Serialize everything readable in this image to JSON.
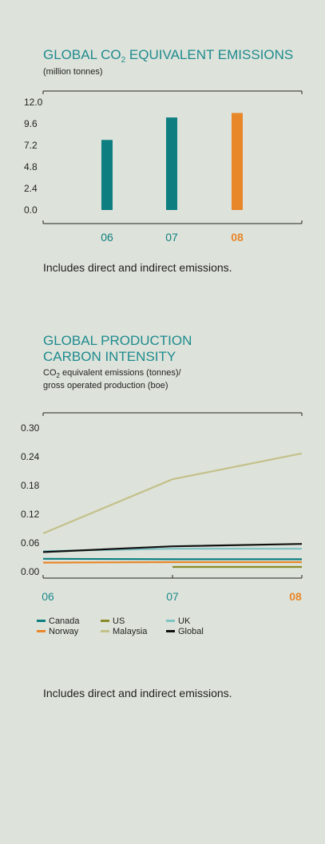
{
  "chart_data": [
    {
      "type": "bar",
      "title_prefix": "GLOBAL CO",
      "title_sub": "2",
      "title_suffix": " EQUIVALENT EMISSIONS",
      "subtitle": "(million tonnes)",
      "categories": [
        "06",
        "07",
        "08"
      ],
      "values": [
        7.8,
        10.3,
        10.8
      ],
      "colors": [
        "#0e7e80",
        "#0e7e80",
        "#e8862a"
      ],
      "ylim": [
        0,
        12.0
      ],
      "yticks": [
        "12.0",
        "9.6",
        "7.2",
        "4.8",
        "2.4",
        "0.0"
      ],
      "note": "Includes direct and indirect emissions."
    },
    {
      "type": "line",
      "title_line1": "GLOBAL PRODUCTION",
      "title_line2": "CARBON INTENSITY",
      "subtitle_prefix": "CO",
      "subtitle_sub": "2",
      "subtitle_suffix": " equivalent emissions (tonnes)/",
      "subtitle_line2": "gross operated production (boe)",
      "x": [
        "06",
        "07",
        "08"
      ],
      "ylim": [
        0,
        0.3
      ],
      "yticks": [
        "0.30",
        "0.24",
        "0.18",
        "0.12",
        "0.06",
        "0.00"
      ],
      "series": [
        {
          "name": "Canada",
          "color": "#0e7e80",
          "values": [
            0.027,
            0.026,
            0.026
          ]
        },
        {
          "name": "Norway",
          "color": "#e8862a",
          "values": [
            0.019,
            0.02,
            0.02
          ]
        },
        {
          "name": "US",
          "color": "#8a8a26",
          "values": [
            null,
            0.01,
            0.01
          ]
        },
        {
          "name": "Malaysia",
          "color": "#c4c08a",
          "values": [
            0.08,
            0.193,
            0.247
          ]
        },
        {
          "name": "UK",
          "color": "#7fc2c6",
          "values": [
            0.043,
            0.048,
            0.048
          ]
        },
        {
          "name": "Global",
          "color": "#111111",
          "values": [
            0.041,
            0.053,
            0.058
          ]
        }
      ],
      "note": "Includes direct and indirect emissions."
    }
  ]
}
